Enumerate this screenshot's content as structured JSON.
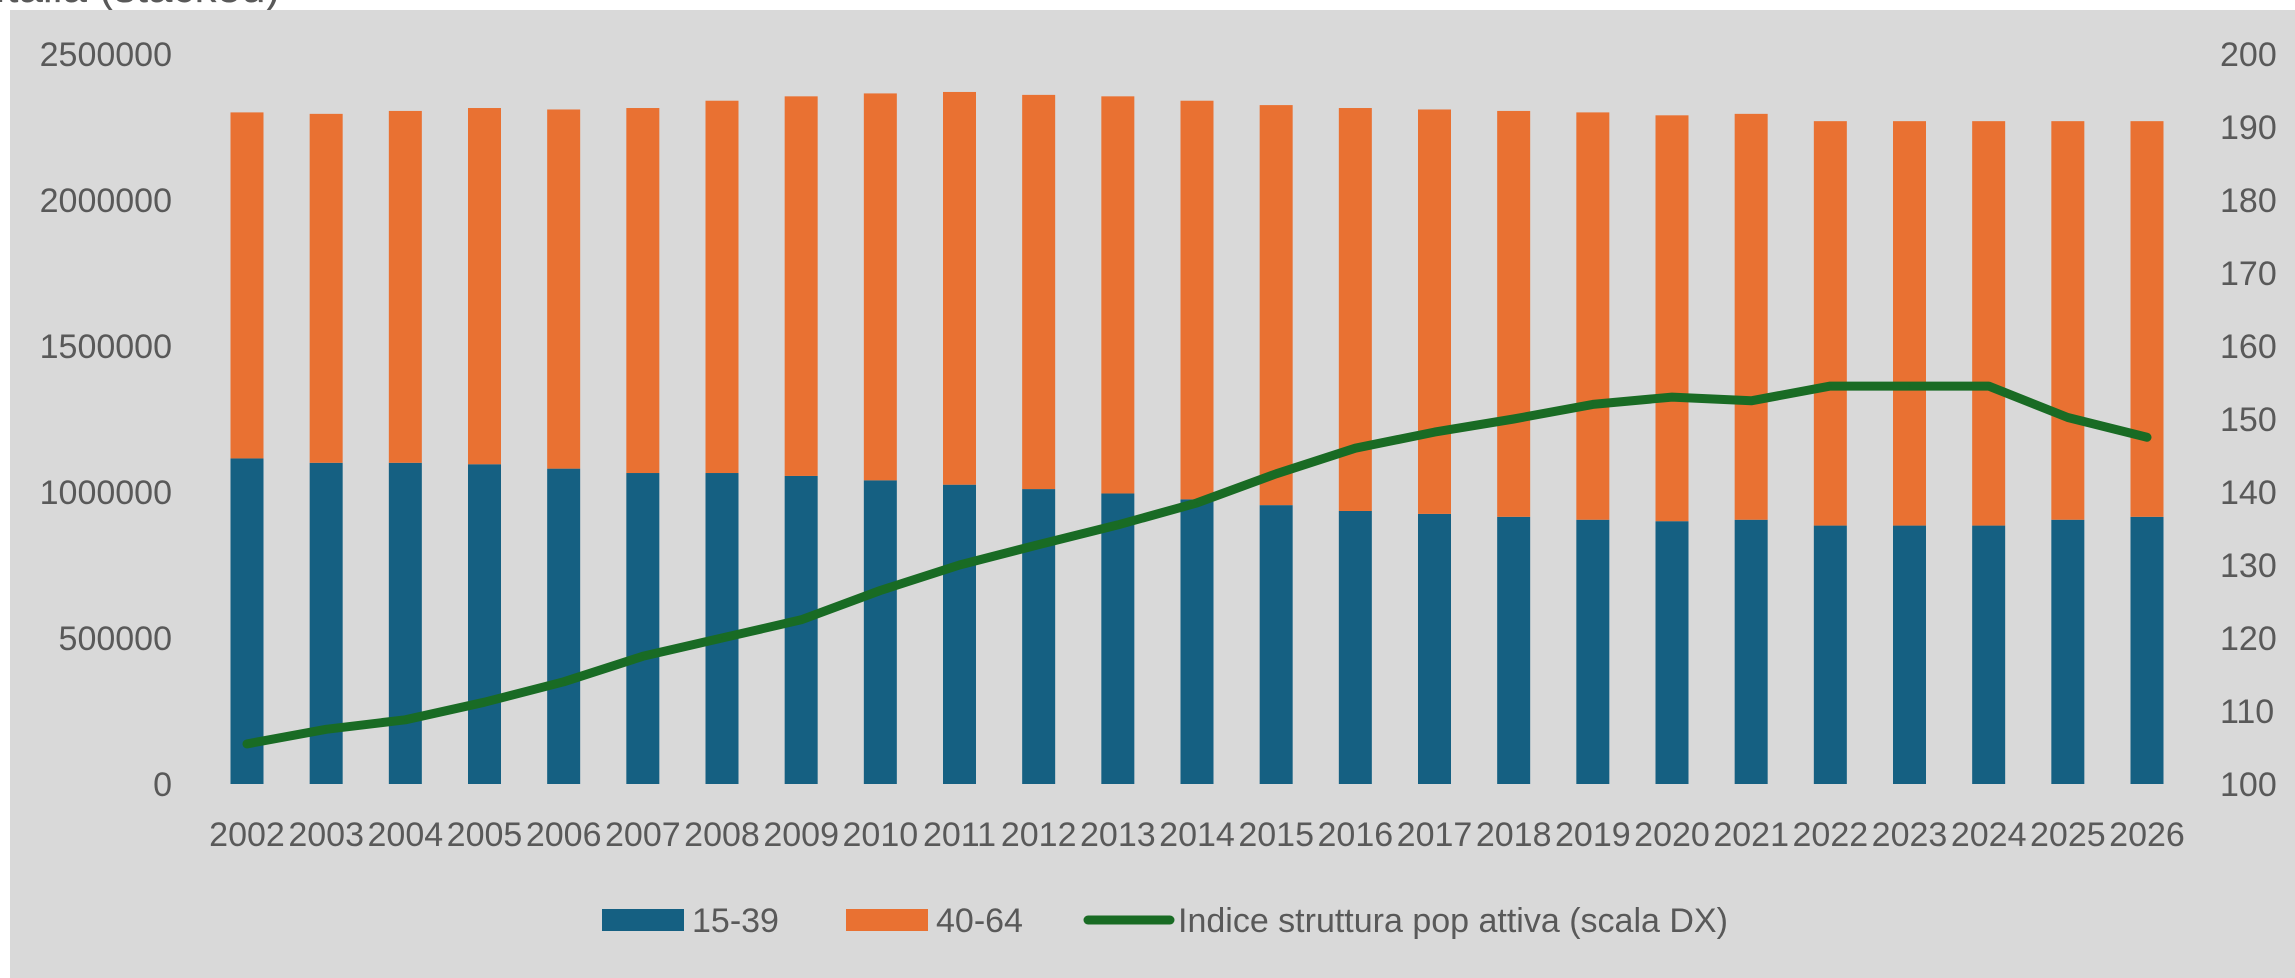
{
  "chart_data": {
    "type": "bar",
    "stacked": true,
    "title_fragment": "Italia (stacked)",
    "categories": [
      "2002",
      "2003",
      "2004",
      "2005",
      "2006",
      "2007",
      "2008",
      "2009",
      "2010",
      "2011",
      "2012",
      "2013",
      "2014",
      "2015",
      "2016",
      "2017",
      "2018",
      "2019",
      "2020",
      "2021",
      "2022",
      "2023",
      "2024",
      "2025",
      "2026"
    ],
    "series": [
      {
        "name": "15-39",
        "color": "#156082",
        "axis": "left",
        "values": [
          1115000,
          1100000,
          1100000,
          1095000,
          1080000,
          1065000,
          1065000,
          1055000,
          1040000,
          1025000,
          1010000,
          995000,
          975000,
          955000,
          935000,
          925000,
          915000,
          905000,
          900000,
          905000,
          885000,
          885000,
          885000,
          905000,
          915000
        ]
      },
      {
        "name": "40-64",
        "color": "#E97132",
        "axis": "left",
        "values": [
          1185000,
          1195000,
          1205000,
          1220000,
          1230000,
          1250000,
          1275000,
          1300000,
          1325000,
          1345000,
          1350000,
          1360000,
          1365000,
          1370000,
          1380000,
          1385000,
          1390000,
          1395000,
          1390000,
          1390000,
          1385000,
          1385000,
          1385000,
          1365000,
          1355000
        ]
      },
      {
        "name": "Indice struttura pop attiva (scala DX)",
        "type": "line",
        "color": "#196B24",
        "axis": "right",
        "values": [
          105.5,
          107.5,
          108.8,
          111.2,
          114.0,
          117.5,
          120.0,
          122.5,
          126.5,
          130.0,
          132.8,
          135.5,
          138.5,
          142.5,
          146.0,
          148.2,
          150.0,
          152.0,
          153.0,
          152.5,
          154.5,
          154.5,
          154.5,
          150.2,
          147.5
        ]
      }
    ],
    "y_left": {
      "min": 0,
      "max": 2500000,
      "ticks": [
        0,
        500000,
        1000000,
        1500000,
        2000000,
        2500000
      ]
    },
    "y_right": {
      "min": 100,
      "max": 200,
      "ticks": [
        100,
        110,
        120,
        130,
        140,
        150,
        160,
        170,
        180,
        190,
        200
      ]
    },
    "grid": false,
    "legend": "bottom",
    "background": "#D9D9D9"
  }
}
